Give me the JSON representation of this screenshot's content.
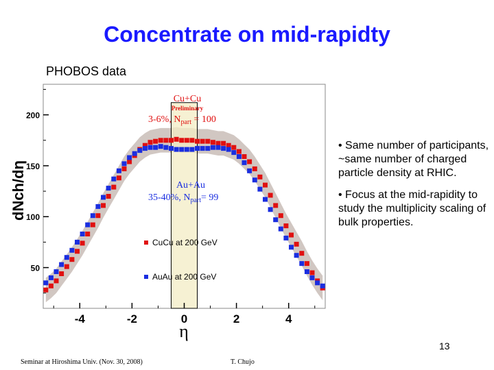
{
  "slide": {
    "title": "Concentrate on mid-rapidty",
    "subtitle": "PHOBOS data",
    "bullets": [
      "• Same number of participants, ~same number of charged particle density at RHIC.",
      "• Focus at the mid-rapidity to study the multiplicity scaling of bulk properties."
    ],
    "page_number": "13",
    "footer_left": "Seminar at Hiroshima Univ. (Nov. 30, 2008)",
    "footer_center": "T. Chujo"
  },
  "chart_data": {
    "type": "scatter",
    "xlabel": "η",
    "ylabel": "dNch/dη",
    "xlim": [
      -5.4,
      5.4
    ],
    "ylim": [
      10,
      230
    ],
    "xticks": [
      -4,
      -2,
      0,
      2,
      4
    ],
    "yticks": [
      50,
      100,
      150,
      200
    ],
    "annotations": {
      "cu_title": "Cu+Cu",
      "cu_prelim": "Preliminary",
      "cu_centrality": "3-6%, N",
      "cu_sub": "part",
      "cu_val": " = 100",
      "au_title": "Au+Au",
      "au_centrality": "35-40%, N",
      "au_sub": "part",
      "au_val": "= 99"
    },
    "highlight_band": [
      -0.5,
      0.5
    ],
    "legend": {
      "position": "bottom-left",
      "entries": [
        "CuCu at 200 GeV",
        "AuAu at 200 GeV"
      ]
    },
    "colors": {
      "cucu": "#e01010",
      "auau": "#1a2ee0",
      "band": "#c9bdb7",
      "highlight": "#f3ecc4",
      "title": "#1a1aff"
    },
    "series": [
      {
        "name": "CuCu at 200 GeV",
        "x": [
          -5.3,
          -5.1,
          -4.9,
          -4.7,
          -4.5,
          -4.3,
          -4.1,
          -3.9,
          -3.7,
          -3.5,
          -3.3,
          -3.1,
          -2.9,
          -2.7,
          -2.5,
          -2.3,
          -2.1,
          -1.9,
          -1.7,
          -1.5,
          -1.3,
          -1.1,
          -0.9,
          -0.7,
          -0.5,
          -0.3,
          -0.1,
          0.1,
          0.3,
          0.5,
          0.7,
          0.9,
          1.1,
          1.3,
          1.5,
          1.7,
          1.9,
          2.1,
          2.3,
          2.5,
          2.7,
          2.9,
          3.1,
          3.3,
          3.5,
          3.7,
          3.9,
          4.1,
          4.3,
          4.5,
          4.7,
          4.9,
          5.1,
          5.3
        ],
        "y": [
          28,
          32,
          37,
          44,
          51,
          58,
          66,
          74,
          83,
          92,
          101,
          111,
          120,
          129,
          138,
          147,
          154,
          160,
          166,
          170,
          173,
          174,
          175,
          175,
          175,
          176,
          175,
          175,
          175,
          174,
          174,
          174,
          173,
          172,
          172,
          170,
          168,
          164,
          159,
          154,
          147,
          139,
          131,
          121,
          111,
          101,
          91,
          82,
          73,
          64,
          54,
          45,
          37,
          30
        ]
      },
      {
        "name": "AuAu at 200 GeV",
        "x": [
          -5.3,
          -5.1,
          -4.9,
          -4.7,
          -4.5,
          -4.3,
          -4.1,
          -3.9,
          -3.7,
          -3.5,
          -3.3,
          -3.1,
          -2.9,
          -2.7,
          -2.5,
          -2.3,
          -2.1,
          -1.9,
          -1.7,
          -1.5,
          -1.3,
          -1.1,
          -0.9,
          -0.7,
          -0.5,
          -0.3,
          -0.1,
          0.1,
          0.3,
          0.5,
          0.7,
          0.9,
          1.1,
          1.3,
          1.5,
          1.7,
          1.9,
          2.1,
          2.3,
          2.5,
          2.7,
          2.9,
          3.1,
          3.3,
          3.5,
          3.7,
          3.9,
          4.1,
          4.3,
          4.5,
          4.7,
          4.9,
          5.1,
          5.3
        ],
        "y": [
          35,
          40,
          46,
          53,
          60,
          67,
          75,
          83,
          92,
          101,
          110,
          119,
          128,
          137,
          145,
          152,
          158,
          162,
          165,
          167,
          168,
          168,
          169,
          168,
          167,
          166,
          166,
          166,
          166,
          167,
          167,
          167,
          168,
          168,
          167,
          166,
          163,
          159,
          153,
          145,
          136,
          127,
          117,
          107,
          97,
          88,
          79,
          70,
          62,
          54,
          46,
          40,
          35,
          32
        ]
      }
    ]
  }
}
